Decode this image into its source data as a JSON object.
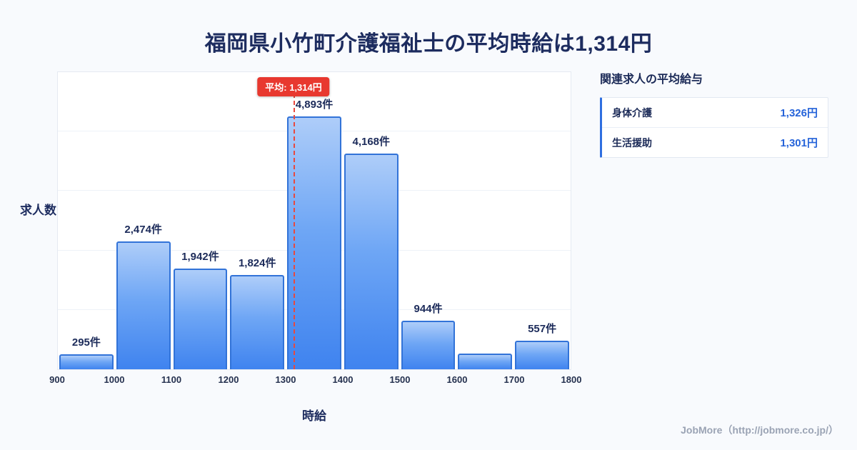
{
  "title": "福岡県小竹町介護福祉士の平均時給は1,314円",
  "chart_data": {
    "type": "bar",
    "title": "福岡県小竹町介護福祉士の平均時給は1,314円",
    "xlabel": "時給",
    "ylabel": "求人数",
    "xlim": [
      900,
      1800
    ],
    "ylim": [
      0,
      5200
    ],
    "grid": true,
    "bin_width": 100,
    "x_ticks": [
      "900",
      "1000",
      "1100",
      "1200",
      "1300",
      "1400",
      "1500",
      "1600",
      "1700",
      "1800"
    ],
    "categories": [
      "900-1000",
      "1000-1100",
      "1100-1200",
      "1200-1300",
      "1300-1400",
      "1400-1500",
      "1500-1600",
      "1600-1700",
      "1700-1800"
    ],
    "values": [
      295,
      2474,
      1942,
      1824,
      4893,
      4168,
      944,
      300,
      557
    ],
    "labels": [
      "295件",
      "2,474件",
      "1,942件",
      "1,824件",
      "4,893件",
      "4,168件",
      "944件",
      "",
      "557件"
    ],
    "average": 1314,
    "average_label": "平均: 1,314円"
  },
  "side_panel": {
    "heading": "関連求人の平均給与",
    "rows": [
      {
        "label": "身体介護",
        "value": "1,326円"
      },
      {
        "label": "生活援助",
        "value": "1,301円"
      }
    ]
  },
  "footer": {
    "credit": "JobMore（http://jobmore.co.jp/）"
  },
  "colors": {
    "background": "#f8fafd",
    "title_navy": "#1d2c5f",
    "bar_fill_top": "#aecdf9",
    "bar_fill_bottom": "#3f83ef",
    "bar_border": "#3273d8",
    "average_red": "#e8382f",
    "value_blue": "#2563d9",
    "footer_gray": "#9aa3b4"
  }
}
